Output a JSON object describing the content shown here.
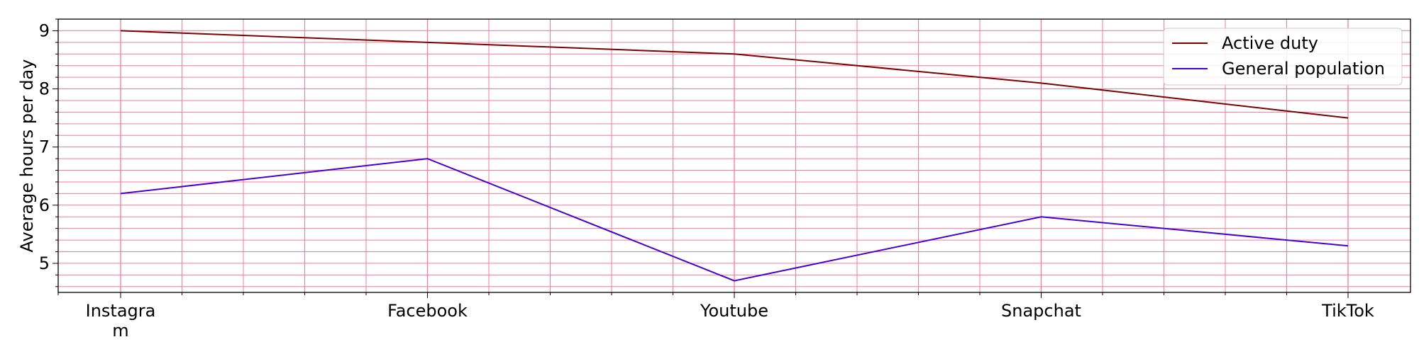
{
  "chart_data": {
    "type": "line",
    "categories": [
      "Instagram",
      "Facebook",
      "Youtube",
      "Snapchat",
      "TikTok"
    ],
    "category_labels": [
      [
        "Instagra",
        "m"
      ],
      [
        "Facebook"
      ],
      [
        "Youtube"
      ],
      [
        "Snapchat"
      ],
      [
        "TikTok"
      ]
    ],
    "series": [
      {
        "name": "Active duty",
        "values": [
          9.0,
          8.8,
          8.6,
          8.1,
          7.5
        ],
        "color": "#800000"
      },
      {
        "name": "General population",
        "values": [
          6.2,
          6.8,
          4.7,
          5.8,
          5.3
        ],
        "color": "#4400dd"
      }
    ],
    "title": "",
    "xlabel": "",
    "ylabel": "Average hours per day",
    "ylim": [
      4.5,
      9.2
    ],
    "yticks": [
      5,
      6,
      7,
      8,
      9
    ],
    "grid": true,
    "grid_color": "#ff7799",
    "legend_position": "top-right"
  }
}
